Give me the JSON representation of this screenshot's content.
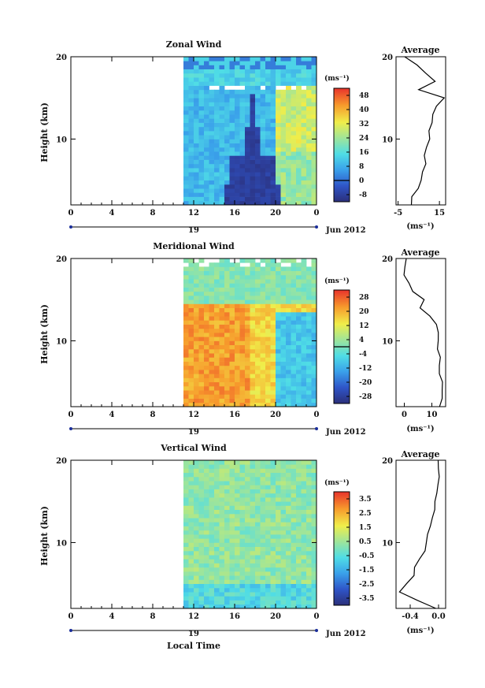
{
  "figure": {
    "day_label": "19",
    "date_label": "Jun 2012",
    "xlabel_bottom": "Local Time"
  },
  "chart_data": [
    {
      "type": "heatmap",
      "title": "Zonal Wind",
      "xlabel": "",
      "ylabel": "Height (km)",
      "xlim": [
        0,
        24
      ],
      "ylim": [
        2,
        20
      ],
      "x_ticks": [
        "0",
        "4",
        "8",
        "12",
        "16",
        "20",
        "0"
      ],
      "y_ticks": [
        "10",
        "20"
      ],
      "data_start_hour": 11,
      "unit_label": "(ms⁻¹)",
      "colorbar_ticks": [
        "48",
        "40",
        "32",
        "24",
        "16",
        "8",
        "0",
        "-8"
      ],
      "colorbar_range": [
        -12,
        52
      ],
      "zero_contour_level": 0,
      "average": {
        "title": "Average",
        "xlim": [
          -6,
          18
        ],
        "x_ticks": [
          "-5",
          "15"
        ],
        "xlabel": "(ms⁻¹)",
        "y_ticks": [
          "10",
          "20"
        ],
        "height_km": [
          2,
          3,
          4,
          5,
          6,
          7,
          8,
          9,
          10,
          11,
          12,
          13,
          14,
          15,
          16,
          17,
          18,
          19,
          20
        ],
        "values": [
          1,
          2,
          5,
          6,
          7,
          8,
          8,
          9,
          10,
          10,
          11,
          12,
          14,
          17,
          5,
          13,
          8,
          4,
          -2
        ]
      }
    },
    {
      "type": "heatmap",
      "title": "Meridional Wind",
      "xlabel": "",
      "ylabel": "Height (km)",
      "xlim": [
        0,
        24
      ],
      "ylim": [
        2,
        20
      ],
      "x_ticks": [
        "0",
        "4",
        "8",
        "12",
        "16",
        "20",
        "0"
      ],
      "y_ticks": [
        "10",
        "20"
      ],
      "data_start_hour": 11,
      "unit_label": "(ms⁻¹)",
      "colorbar_ticks": [
        "28",
        "20",
        "12",
        "4",
        "-4",
        "-12",
        "-20",
        "-28"
      ],
      "colorbar_range": [
        -32,
        32
      ],
      "zero_contour_level": 0,
      "average": {
        "title": "Average",
        "xlim": [
          -3,
          15
        ],
        "x_ticks": [
          "0",
          "10"
        ],
        "xlabel": "(ms⁻¹)",
        "y_ticks": [
          "10",
          "20"
        ],
        "height_km": [
          2,
          3,
          4,
          5,
          6,
          7,
          8,
          9,
          10,
          11,
          12,
          13,
          14,
          15,
          16,
          17,
          18,
          19,
          20
        ],
        "values": [
          13,
          14,
          14,
          14,
          13,
          13,
          13,
          12,
          12,
          12,
          12,
          9,
          6,
          7,
          3,
          2,
          0,
          0,
          1
        ]
      }
    },
    {
      "type": "heatmap",
      "title": "Vertical Wind",
      "xlabel": "Local Time",
      "ylabel": "Height (km)",
      "xlim": [
        0,
        24
      ],
      "ylim": [
        2,
        20
      ],
      "x_ticks": [
        "0",
        "4",
        "8",
        "12",
        "16",
        "20",
        "0"
      ],
      "y_ticks": [
        "10",
        "20"
      ],
      "data_start_hour": 11,
      "unit_label": "(ms⁻¹)",
      "colorbar_ticks": [
        "3.5",
        "2.5",
        "1.5",
        "0.5",
        "-0.5",
        "-1.5",
        "-2.5",
        "-3.5"
      ],
      "colorbar_range": [
        -4,
        4
      ],
      "average": {
        "title": "Average",
        "xlim": [
          -0.6,
          0.1
        ],
        "x_ticks": [
          "-0.4",
          "0.0"
        ],
        "xlabel": "(ms⁻¹)",
        "y_ticks": [
          "10",
          "20"
        ],
        "height_km": [
          2,
          3,
          4,
          5,
          6,
          7,
          8,
          9,
          10,
          11,
          12,
          13,
          14,
          15,
          16,
          17,
          18,
          19,
          20
        ],
        "values": [
          -0.05,
          -0.3,
          -0.55,
          -0.45,
          -0.35,
          -0.35,
          -0.28,
          -0.2,
          -0.18,
          -0.15,
          -0.12,
          -0.08,
          -0.05,
          -0.05,
          -0.03,
          -0.02,
          0.0,
          0.0,
          0.0
        ]
      }
    }
  ]
}
